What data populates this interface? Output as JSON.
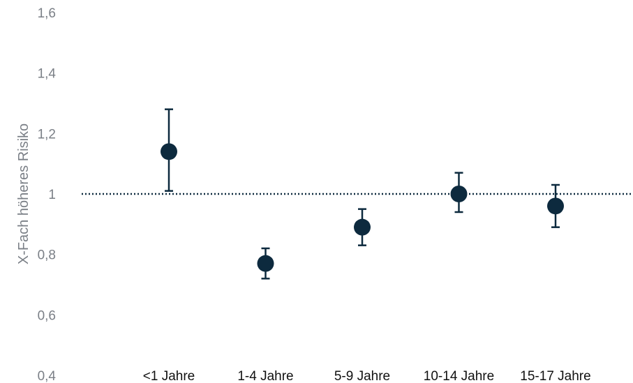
{
  "chart_data": {
    "type": "scatter",
    "title": "",
    "xlabel": "",
    "ylabel": "X-Fach höheres Risiko",
    "categories": [
      "<1 Jahre",
      "1-4 Jahre",
      "5-9 Jahre",
      "10-14 Jahre",
      "15-17 Jahre"
    ],
    "series": [
      {
        "values": [
          1.14,
          0.77,
          0.89,
          1.0,
          0.96
        ],
        "lower": [
          1.01,
          0.72,
          0.83,
          0.94,
          0.89
        ],
        "upper": [
          1.28,
          0.82,
          0.95,
          1.07,
          1.03
        ],
        "color": "#0d2a3e"
      }
    ],
    "yticks": [
      "1,6",
      "1,4",
      "1,2",
      "1",
      "0,8",
      "0,6",
      "0,4"
    ],
    "ytick_values": [
      1.6,
      1.4,
      1.2,
      1.0,
      0.8,
      0.6,
      0.4
    ],
    "ylim": [
      0.4,
      1.6
    ],
    "reference_line": 1.0,
    "grid": false,
    "legend": "none"
  }
}
